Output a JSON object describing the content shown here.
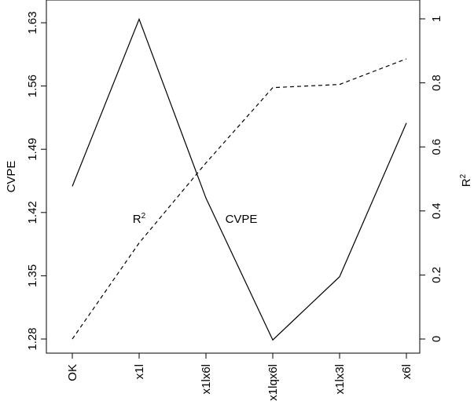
{
  "chart_data": {
    "type": "line",
    "title": "",
    "categories": [
      "OK",
      "x1l",
      "x1lx6l",
      "x1lqx6l",
      "x1lx3l",
      "x6l"
    ],
    "y_left": {
      "label": "CVPE",
      "lim": [
        1.28,
        1.63
      ],
      "ticks": [
        "1.28",
        "1.35",
        "1.42",
        "1.49",
        "1.56",
        "1.63"
      ]
    },
    "y_right": {
      "label": "R",
      "label_sup": "2",
      "lim": [
        0,
        1
      ],
      "ticks": [
        "0",
        "0.2",
        "0.4",
        "0.6",
        "0.8",
        "1"
      ]
    },
    "series": [
      {
        "name": "CVPE",
        "axis": "left",
        "line_style": "solid",
        "values": [
          1.449,
          1.634,
          1.436,
          1.279,
          1.349,
          1.519
        ]
      },
      {
        "name": "R",
        "name_sup": "2",
        "axis": "right",
        "line_style": "dashed",
        "values": [
          0.0,
          0.3,
          0.55,
          0.785,
          0.795,
          0.875
        ]
      }
    ],
    "annotations": [
      {
        "text": "R",
        "sup": "2",
        "category": 1,
        "y_left": 1.413
      },
      {
        "text": "CVPE",
        "category": 2,
        "y_left": 1.413
      }
    ],
    "grid": false,
    "legend": "none"
  }
}
